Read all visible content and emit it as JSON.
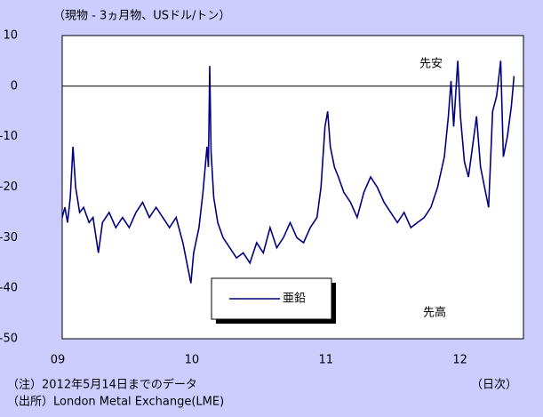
{
  "chart_data": {
    "type": "line",
    "title": "（現物 - 3ヵ月物、USドル/トン）",
    "x": [
      2009.0,
      2009.02,
      2009.04,
      2009.06,
      2009.08,
      2009.1,
      2009.13,
      2009.16,
      2009.2,
      2009.23,
      2009.27,
      2009.3,
      2009.35,
      2009.4,
      2009.45,
      2009.5,
      2009.55,
      2009.6,
      2009.65,
      2009.7,
      2009.75,
      2009.8,
      2009.85,
      2009.9,
      2009.93,
      2009.96,
      2009.98,
      2010.02,
      2010.05,
      2010.08,
      2010.09,
      2010.1,
      2010.11,
      2010.13,
      2010.16,
      2010.2,
      2010.25,
      2010.3,
      2010.35,
      2010.4,
      2010.45,
      2010.5,
      2010.55,
      2010.6,
      2010.65,
      2010.7,
      2010.75,
      2010.8,
      2010.85,
      2010.9,
      2010.93,
      2010.96,
      2010.98,
      2011.0,
      2011.03,
      2011.06,
      2011.1,
      2011.15,
      2011.2,
      2011.25,
      2011.3,
      2011.35,
      2011.4,
      2011.45,
      2011.5,
      2011.55,
      2011.6,
      2011.65,
      2011.7,
      2011.75,
      2011.8,
      2011.85,
      2011.88,
      2011.9,
      2011.92,
      2011.95,
      2011.97,
      2012.0,
      2012.03,
      2012.06,
      2012.09,
      2012.12,
      2012.15,
      2012.18,
      2012.21,
      2012.24,
      2012.27,
      2012.29,
      2012.32,
      2012.35,
      2012.37
    ],
    "series": [
      {
        "name": "亜鉛",
        "color": "#000080",
        "values": [
          -26,
          -24,
          -27,
          -22,
          -12,
          -20,
          -25,
          -24,
          -27,
          -26,
          -33,
          -27,
          -25,
          -28,
          -26,
          -28,
          -25,
          -23,
          -26,
          -24,
          -26,
          -28,
          -26,
          -31,
          -35,
          -39,
          -33,
          -28,
          -21,
          -12,
          -16,
          4,
          -13,
          -22,
          -27,
          -30,
          -32,
          -34,
          -33,
          -35,
          -31,
          -33,
          -28,
          -32,
          -30,
          -27,
          -30,
          -31,
          -28,
          -26,
          -20,
          -8,
          -5,
          -12,
          -16,
          -18,
          -21,
          -23,
          -26,
          -21,
          -18,
          -20,
          -23,
          -25,
          -27,
          -25,
          -28,
          -27,
          -26,
          -24,
          -20,
          -14,
          -6,
          1,
          -8,
          5,
          -6,
          -15,
          -18,
          -12,
          -6,
          -16,
          -20,
          -24,
          -5,
          -2,
          5,
          -14,
          -10,
          -4,
          2
        ]
      }
    ],
    "xlim": [
      2009.0,
      2012.44
    ],
    "xticks": [
      {
        "value": 2009,
        "label": "09"
      },
      {
        "value": 2010,
        "label": "10"
      },
      {
        "value": 2011,
        "label": "11"
      },
      {
        "value": 2012,
        "label": "12"
      }
    ],
    "ylim": [
      -50,
      10
    ],
    "yticks": [
      -50,
      -40,
      -30,
      -20,
      -10,
      0,
      10
    ],
    "reference_line": 0,
    "annotations": [
      "先安",
      "先高"
    ],
    "notes": [
      "（注）2012年5月14日までのデータ",
      "（日次）",
      "（出所）London Metal Exchange(LME)"
    ]
  }
}
